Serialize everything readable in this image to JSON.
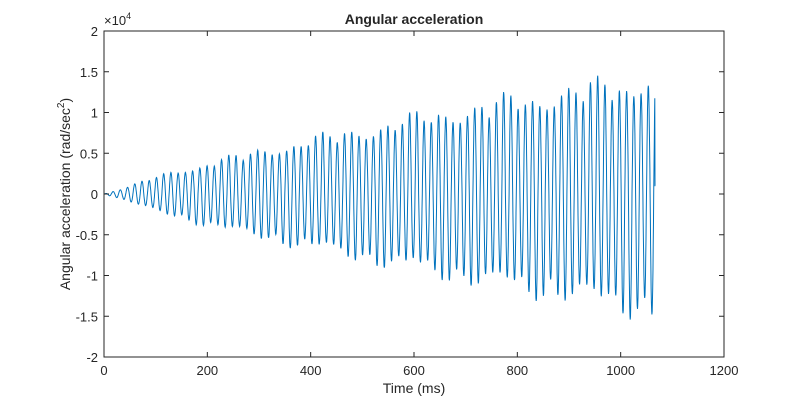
{
  "chart_data": {
    "type": "line",
    "title": "Angular acceleration",
    "xlabel": "Time (ms)",
    "ylabel_main": "Angular acceleration (rad/sec",
    "ylabel_sup": "2",
    "ylabel_close": ")",
    "exponent_prefix": "×10",
    "exponent_power": "4",
    "xlim": [
      0,
      1200
    ],
    "ylim": [
      -20000,
      20000
    ],
    "xticks": [
      0,
      200,
      400,
      600,
      800,
      1000,
      1200
    ],
    "xtick_labels": [
      "0",
      "200",
      "400",
      "600",
      "800",
      "1000",
      "1200"
    ],
    "yticks": [
      -20000,
      -15000,
      -10000,
      -5000,
      0,
      5000,
      10000,
      15000,
      20000
    ],
    "ytick_labels": [
      "-2",
      "-1.5",
      "-1",
      "-0.5",
      "0",
      "0.5",
      "1",
      "1.5",
      "2"
    ],
    "series": [
      {
        "name": "angular acceleration",
        "color": "#0072BD",
        "duration_ms": 1067,
        "oscillation_period_ms": 14,
        "envelope": [
          [
            0,
            0
          ],
          [
            50,
            1000
          ],
          [
            100,
            2200
          ],
          [
            200,
            4000
          ],
          [
            300,
            5500
          ],
          [
            400,
            7000
          ],
          [
            500,
            8300
          ],
          [
            600,
            9800
          ],
          [
            700,
            11000
          ],
          [
            800,
            12300
          ],
          [
            900,
            13300
          ],
          [
            1000,
            14500
          ],
          [
            1060,
            15500
          ]
        ]
      }
    ],
    "grid": false
  }
}
